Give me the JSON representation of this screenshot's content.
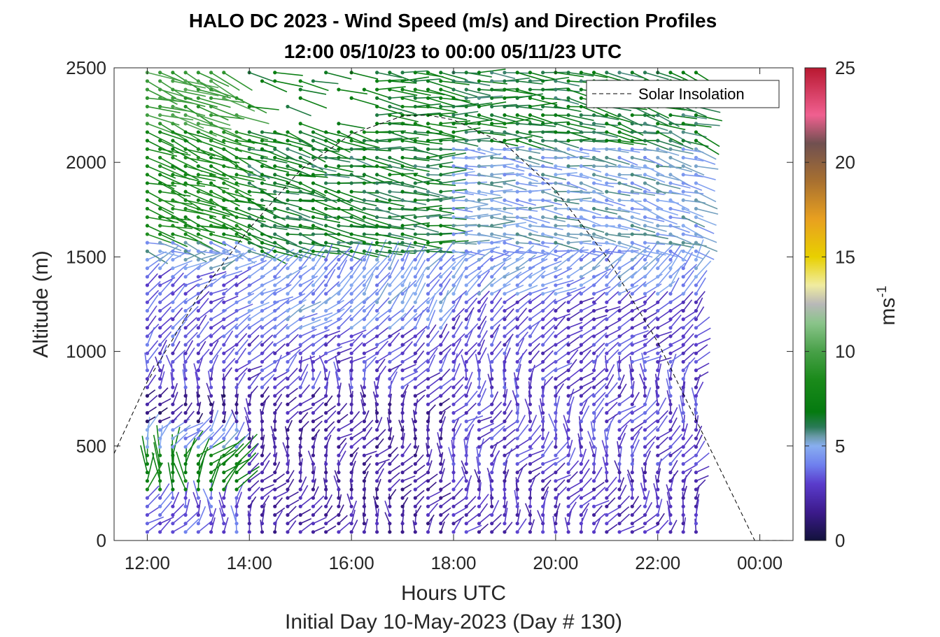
{
  "chart_data": {
    "type": "wind-barb-profile",
    "title": "HALO DC 2023 - Wind Speed (m/s) and Direction Profiles",
    "subtitle": "12:00 05/10/23 to 00:00 05/11/23  UTC",
    "xlabel": "Hours UTC",
    "xlabel_sub": "Initial Day 10-May-2023 (Day # 130)",
    "ylabel": "Altitude (m)",
    "x_ticks": [
      "12:00",
      "14:00",
      "16:00",
      "18:00",
      "20:00",
      "22:00",
      "00:00"
    ],
    "x_tick_hours": [
      12,
      14,
      16,
      18,
      20,
      22,
      24
    ],
    "xlim_hours": [
      11.35,
      24.65
    ],
    "y_ticks": [
      "0",
      "500",
      "1000",
      "1500",
      "2000",
      "2500"
    ],
    "y_tick_values": [
      0,
      500,
      1000,
      1500,
      2000,
      2500
    ],
    "ylim": [
      0,
      2500
    ],
    "grid": false,
    "profile_start_hour": 12.0,
    "profile_end_hour": 22.8,
    "profile_interval_hours": 0.25,
    "altitude_start_m": 45,
    "altitude_end_m": 2490,
    "altitude_step_m": 45,
    "colorbar": {
      "label": "ms",
      "label_superscript": "-1",
      "ticks": [
        "0",
        "5",
        "10",
        "15",
        "20",
        "25"
      ],
      "tick_values": [
        0,
        5,
        10,
        15,
        20,
        25
      ],
      "range": [
        0,
        25
      ],
      "stops": [
        {
          "v": 0,
          "c": "#12123c"
        },
        {
          "v": 1.5,
          "c": "#3c1a8c"
        },
        {
          "v": 3,
          "c": "#5a3ccc"
        },
        {
          "v": 4,
          "c": "#6f80ee"
        },
        {
          "v": 5,
          "c": "#88aef0"
        },
        {
          "v": 5.5,
          "c": "#6a9aa8"
        },
        {
          "v": 6,
          "c": "#2a7a58"
        },
        {
          "v": 6.8,
          "c": "#057a10"
        },
        {
          "v": 8.5,
          "c": "#1a8a1a"
        },
        {
          "v": 10,
          "c": "#48a048"
        },
        {
          "v": 11.5,
          "c": "#8ac48a"
        },
        {
          "v": 12.5,
          "c": "#b8b8b8"
        },
        {
          "v": 13.5,
          "c": "#f0eca0"
        },
        {
          "v": 15,
          "c": "#e8d000"
        },
        {
          "v": 17,
          "c": "#e8a020"
        },
        {
          "v": 19,
          "c": "#a87030"
        },
        {
          "v": 21,
          "c": "#705050"
        },
        {
          "v": 22.5,
          "c": "#f06090"
        },
        {
          "v": 25,
          "c": "#b81830"
        }
      ]
    },
    "speed_profile_by_period": [
      {
        "period": "12:00-13:45",
        "layers": [
          {
            "alt_max": 250,
            "speed": 3.5
          },
          {
            "alt_max": 450,
            "speed": 7.5
          },
          {
            "alt_max": 600,
            "speed": 4.5
          },
          {
            "alt_max": 800,
            "speed": 1.5
          },
          {
            "alt_max": 1000,
            "speed": 3.0
          },
          {
            "alt_max": 1400,
            "speed": 3.5
          },
          {
            "alt_max": 1600,
            "speed": 5.0
          },
          {
            "alt_max": 2200,
            "speed": 8.0
          },
          {
            "alt_max": 2500,
            "speed": 9.5
          }
        ]
      },
      {
        "period": "14:00-17:45",
        "layers": [
          {
            "alt_max": 800,
            "speed": 2.0
          },
          {
            "alt_max": 1100,
            "speed": 3.0
          },
          {
            "alt_max": 1500,
            "speed": 4.5
          },
          {
            "alt_max": 2100,
            "speed": 6.5
          },
          {
            "alt_max": 2500,
            "speed": 7.0
          }
        ]
      },
      {
        "period": "18:00-22:45",
        "layers": [
          {
            "alt_max": 400,
            "speed": 2.5
          },
          {
            "alt_max": 1300,
            "speed": 3.0
          },
          {
            "alt_max": 1550,
            "speed": 4.5
          },
          {
            "alt_max": 2100,
            "speed": 5.0
          },
          {
            "alt_max": 2500,
            "speed": 6.5
          }
        ]
      }
    ],
    "series": [
      {
        "name": "Solar Insolation",
        "style": "dashed",
        "color": "#000000",
        "x_hours": [
          11.35,
          12.0,
          13.0,
          14.0,
          15.0,
          16.0,
          17.0,
          17.5,
          18.0,
          19.0,
          20.0,
          21.0,
          22.0,
          23.0,
          23.9,
          24.65
        ],
        "y": [
          460,
          840,
          1290,
          1650,
          1960,
          2150,
          2245,
          2250,
          2225,
          2100,
          1850,
          1500,
          1050,
          500,
          0,
          0
        ]
      }
    ],
    "legend": {
      "position": "top-right",
      "entries": [
        "Solar Insolation"
      ]
    }
  }
}
